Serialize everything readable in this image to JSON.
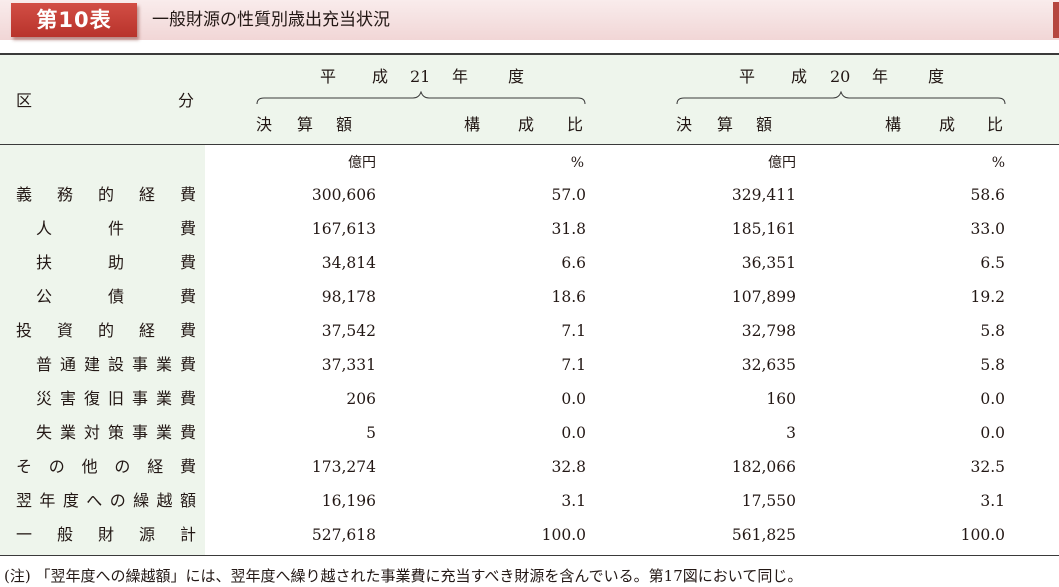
{
  "header": {
    "tag": "第10表",
    "title": "一般財源の性質別歳出充当状況"
  },
  "table": {
    "stub_header": {
      "left": "区",
      "right": "分"
    },
    "groups": [
      {
        "label_parts": [
          "平",
          "成",
          "21",
          "年",
          "度"
        ],
        "amount_label": [
          "決",
          "算",
          "額"
        ],
        "ratio_label": [
          "構",
          "成",
          "比"
        ]
      },
      {
        "label_parts": [
          "平",
          "成",
          "20",
          "年",
          "度"
        ],
        "amount_label": [
          "決",
          "算",
          "額"
        ],
        "ratio_label": [
          "構",
          "成",
          "比"
        ]
      }
    ],
    "units": {
      "amount": "億円",
      "ratio": "%"
    },
    "rows": [
      {
        "label": "義務的経費",
        "indent": false,
        "h21_amount": "300,606",
        "h21_ratio": "57.0",
        "h20_amount": "329,411",
        "h20_ratio": "58.6"
      },
      {
        "label": "人件費",
        "indent": true,
        "h21_amount": "167,613",
        "h21_ratio": "31.8",
        "h20_amount": "185,161",
        "h20_ratio": "33.0"
      },
      {
        "label": "扶助費",
        "indent": true,
        "h21_amount": "34,814",
        "h21_ratio": "6.6",
        "h20_amount": "36,351",
        "h20_ratio": "6.5"
      },
      {
        "label": "公債費",
        "indent": true,
        "h21_amount": "98,178",
        "h21_ratio": "18.6",
        "h20_amount": "107,899",
        "h20_ratio": "19.2"
      },
      {
        "label": "投資的経費",
        "indent": false,
        "h21_amount": "37,542",
        "h21_ratio": "7.1",
        "h20_amount": "32,798",
        "h20_ratio": "5.8"
      },
      {
        "label": "普通建設事業費",
        "indent": true,
        "h21_amount": "37,331",
        "h21_ratio": "7.1",
        "h20_amount": "32,635",
        "h20_ratio": "5.8"
      },
      {
        "label": "災害復旧事業費",
        "indent": true,
        "h21_amount": "206",
        "h21_ratio": "0.0",
        "h20_amount": "160",
        "h20_ratio": "0.0"
      },
      {
        "label": "失業対策事業費",
        "indent": true,
        "h21_amount": "5",
        "h21_ratio": "0.0",
        "h20_amount": "3",
        "h20_ratio": "0.0"
      },
      {
        "label": "その他の経費",
        "indent": false,
        "h21_amount": "173,274",
        "h21_ratio": "32.8",
        "h20_amount": "182,066",
        "h20_ratio": "32.5"
      },
      {
        "label": "翌年度への繰越額",
        "indent": false,
        "h21_amount": "16,196",
        "h21_ratio": "3.1",
        "h20_amount": "17,550",
        "h20_ratio": "3.1"
      },
      {
        "label": "一般財源計",
        "indent": false,
        "h21_amount": "527,618",
        "h21_ratio": "100.0",
        "h20_amount": "561,825",
        "h20_ratio": "100.0"
      }
    ]
  },
  "note": "(注) 「翌年度への繰越額」には、翌年度へ繰り越された事業費に充当すべき財源を含んでいる。第17図において同じ。",
  "colors": {
    "tag_bg": "#c0392b",
    "title_band": "#f4dede",
    "table_band": "#eef5ec"
  }
}
